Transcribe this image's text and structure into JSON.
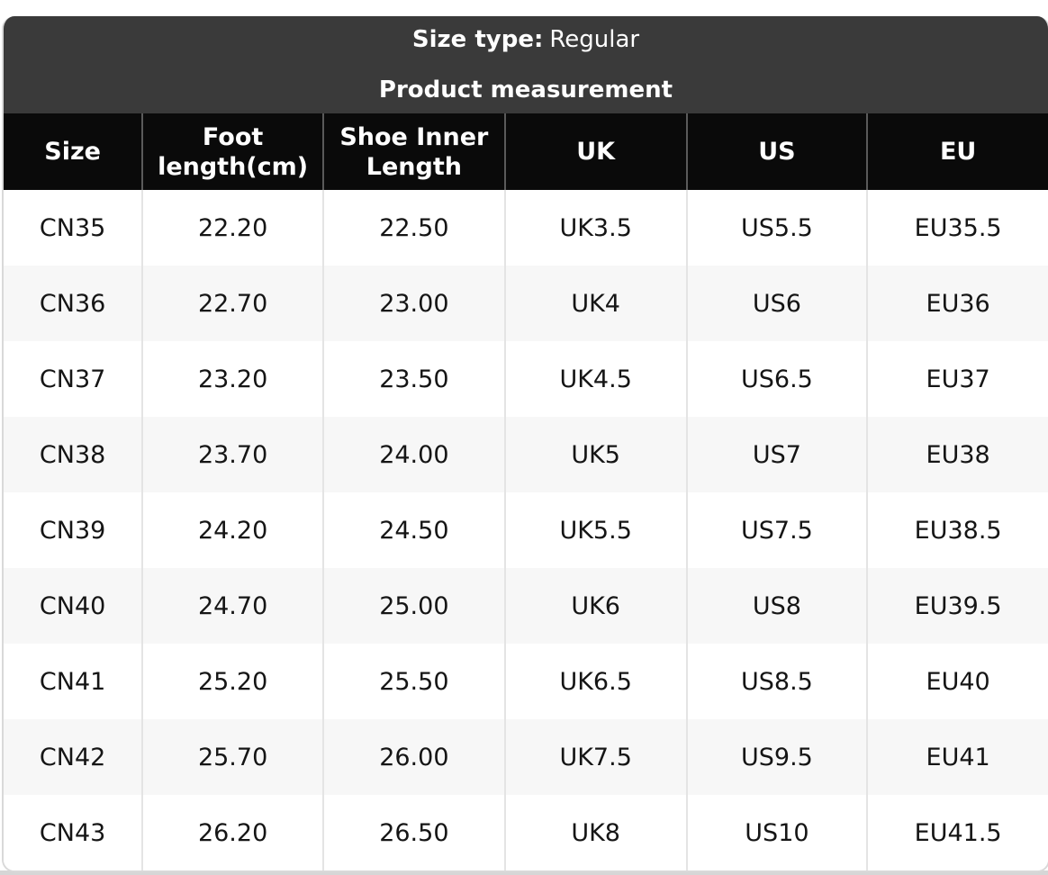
{
  "header": {
    "size_type_label": "Size type:",
    "size_type_value": "Regular",
    "subtitle": "Product measurement"
  },
  "table": {
    "columns": [
      "Size",
      "Foot length(cm)",
      "Shoe Inner Length",
      "UK",
      "US",
      "EU"
    ],
    "rows": [
      [
        "CN35",
        "22.20",
        "22.50",
        "UK3.5",
        "US5.5",
        "EU35.5"
      ],
      [
        "CN36",
        "22.70",
        "23.00",
        "UK4",
        "US6",
        "EU36"
      ],
      [
        "CN37",
        "23.20",
        "23.50",
        "UK4.5",
        "US6.5",
        "EU37"
      ],
      [
        "CN38",
        "23.70",
        "24.00",
        "UK5",
        "US7",
        "EU38"
      ],
      [
        "CN39",
        "24.20",
        "24.50",
        "UK5.5",
        "US7.5",
        "EU38.5"
      ],
      [
        "CN40",
        "24.70",
        "25.00",
        "UK6",
        "US8",
        "EU39.5"
      ],
      [
        "CN41",
        "25.20",
        "25.50",
        "UK6.5",
        "US8.5",
        "EU40"
      ],
      [
        "CN42",
        "25.70",
        "26.00",
        "UK7.5",
        "US9.5",
        "EU41"
      ],
      [
        "CN43",
        "26.20",
        "26.50",
        "UK8",
        "US10",
        "EU41.5"
      ]
    ],
    "column_widths_pct": [
      13.3,
      17.3,
      17.4,
      17.4,
      17.3,
      17.3
    ]
  },
  "colors": {
    "header_bar_bg": "#3a3a3a",
    "column_header_bg": "#0a0a0a",
    "alt_row_bg": "#f7f7f7",
    "grid_line": "#e4e4e4",
    "header_grid_line": "#5a5a5a",
    "card_border": "#d9d9d9",
    "text": "#151515",
    "header_text": "#ffffff"
  }
}
